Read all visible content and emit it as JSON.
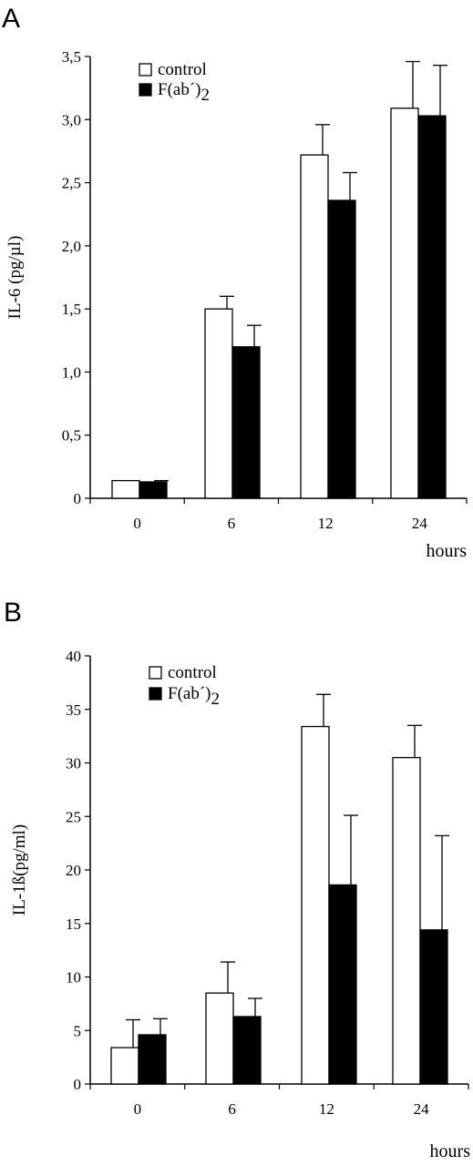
{
  "chart_data": [
    {
      "type": "bar",
      "panel": "A",
      "ylabel": "IL-6 (pg/µl)",
      "xlabel": "hours",
      "categories": [
        "0",
        "6",
        "12",
        "24"
      ],
      "ylim": [
        0,
        3.5
      ],
      "yticks": [
        0,
        0.5,
        1.0,
        1.5,
        2.0,
        2.5,
        3.0,
        3.5
      ],
      "ytick_labels": [
        "0",
        "0,5",
        "1,0",
        "1,5",
        "2,0",
        "2,5",
        "3,0",
        "3,5"
      ],
      "legend": [
        "control",
        "F(ab´)2"
      ],
      "legend_position": "top-left",
      "grid": false,
      "series": [
        {
          "name": "control",
          "color": "#ffffff",
          "values": [
            0.14,
            1.5,
            2.72,
            3.09
          ],
          "errors": [
            0.0,
            0.1,
            0.24,
            0.37
          ]
        },
        {
          "name": "F(ab´)2",
          "color": "#000000",
          "values": [
            0.13,
            1.2,
            2.36,
            3.03
          ],
          "errors": [
            0.01,
            0.17,
            0.22,
            0.4
          ]
        }
      ]
    },
    {
      "type": "bar",
      "panel": "B",
      "ylabel": "IL-1ß(pg/ml)",
      "xlabel": "hours",
      "categories": [
        "0",
        "6",
        "12",
        "24"
      ],
      "ylim": [
        0,
        40
      ],
      "yticks": [
        0,
        5,
        10,
        15,
        20,
        25,
        30,
        35,
        40
      ],
      "ytick_labels": [
        "0",
        "5",
        "10",
        "15",
        "20",
        "25",
        "30",
        "35",
        "40"
      ],
      "legend": [
        "control",
        "F(ab´)2"
      ],
      "legend_position": "top-left",
      "grid": false,
      "series": [
        {
          "name": "control",
          "color": "#ffffff",
          "values": [
            3.4,
            8.5,
            33.4,
            30.5
          ],
          "errors": [
            2.6,
            2.9,
            3.0,
            3.0
          ]
        },
        {
          "name": "F(ab´)2",
          "color": "#000000",
          "values": [
            4.6,
            6.3,
            18.6,
            14.4
          ],
          "errors": [
            1.5,
            1.7,
            6.5,
            8.8
          ]
        }
      ]
    }
  ]
}
